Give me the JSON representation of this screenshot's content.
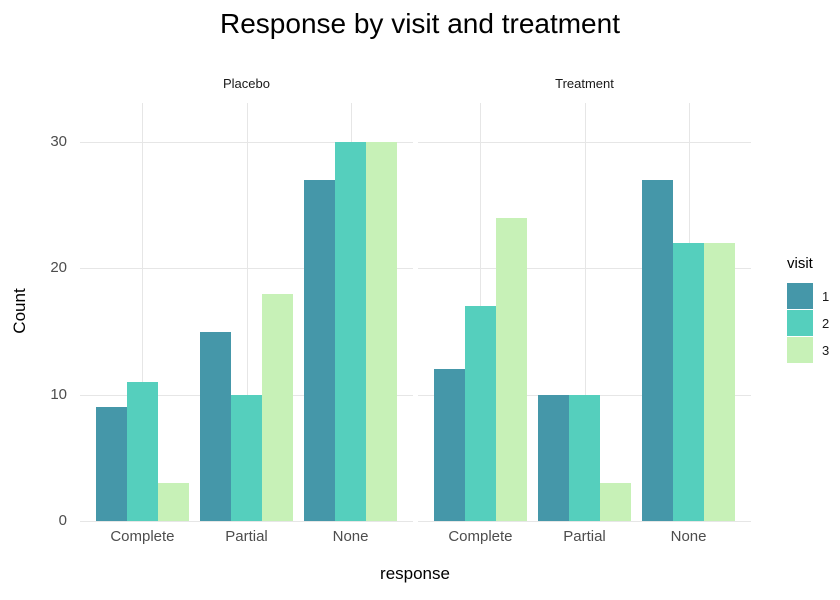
{
  "chart_data": {
    "type": "bar",
    "title": "Response by visit and treatment",
    "xlabel": "response",
    "ylabel": "Count",
    "categories": [
      "Complete",
      "Partial",
      "None"
    ],
    "y_ticks": [
      0,
      10,
      20,
      30
    ],
    "ylim": [
      0,
      33.1
    ],
    "grid": "major-only",
    "legend_position": "right",
    "facets": [
      {
        "label": "Placebo",
        "series": [
          {
            "name": "1",
            "values": [
              9,
              15,
              27
            ]
          },
          {
            "name": "2",
            "values": [
              11,
              10,
              30
            ]
          },
          {
            "name": "3",
            "values": [
              3,
              18,
              30
            ]
          }
        ]
      },
      {
        "label": "Treatment",
        "series": [
          {
            "name": "1",
            "values": [
              12,
              10,
              27
            ]
          },
          {
            "name": "2",
            "values": [
              17,
              10,
              22
            ]
          },
          {
            "name": "3",
            "values": [
              24,
              3,
              22
            ]
          }
        ]
      }
    ],
    "legend": {
      "title": "visit",
      "entries": [
        {
          "label": "1",
          "color": "#4597a9"
        },
        {
          "label": "2",
          "color": "#55cfbd"
        },
        {
          "label": "3",
          "color": "#c7f1b7"
        }
      ]
    },
    "colors": {
      "grid": "#e6e6e6",
      "axis_text": "#4d4d4d",
      "title_text": "#000000",
      "background": "#ffffff"
    }
  }
}
